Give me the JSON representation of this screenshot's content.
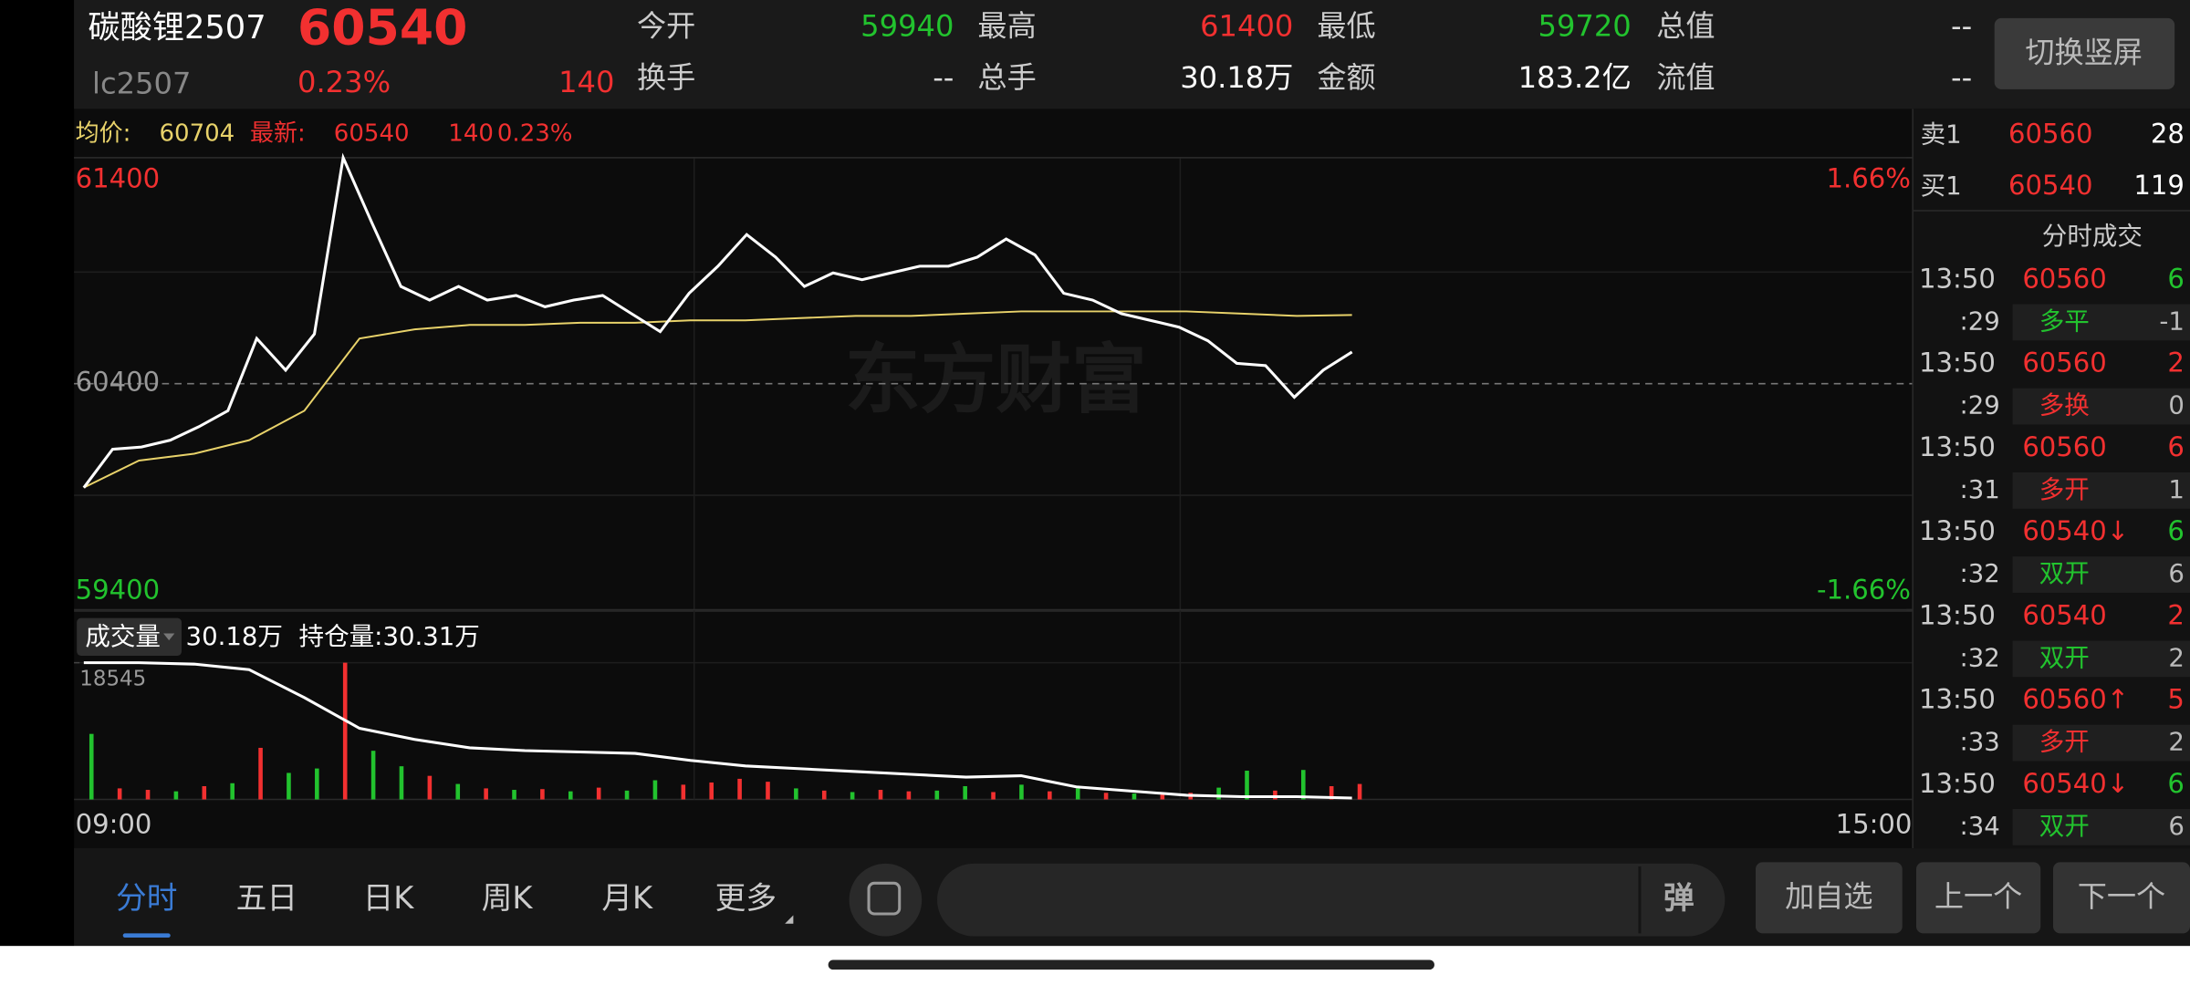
{
  "header": {
    "name": "碳酸锂2507",
    "price": "60540",
    "code": "lc2507",
    "change_pct": "0.23%",
    "change": "140",
    "stats": [
      {
        "label": "今开",
        "value": "59940",
        "color": "#22c32e"
      },
      {
        "label": "最高",
        "value": "61400",
        "color": "#f23030"
      },
      {
        "label": "最低",
        "value": "59720",
        "color": "#22c32e"
      },
      {
        "label": "总值",
        "value": "--",
        "color": "#dddddd"
      },
      {
        "label": "换手",
        "value": "--",
        "color": "#dddddd"
      },
      {
        "label": "总手",
        "value": "30.18万",
        "color": "#ffffff"
      },
      {
        "label": "金额",
        "value": "183.2亿",
        "color": "#ffffff"
      },
      {
        "label": "流值",
        "value": "--",
        "color": "#dddddd"
      }
    ],
    "button": "切换竖屏"
  },
  "info": {
    "avg_label": "均价:",
    "avg": "60704",
    "last_label": "最新:",
    "last": "60540",
    "change": "140",
    "change_pct": "0.23%"
  },
  "chart_data": [
    {
      "type": "line",
      "watermark": "东方财富",
      "ylim": [
        59400,
        61400
      ],
      "yticks": [
        59400,
        60400,
        61400
      ],
      "y2lim": [
        -1.66,
        1.66
      ],
      "y2ticks": [
        {
          "value": -1.66,
          "label": "-1.66%"
        },
        {
          "value": 1.66,
          "label": "1.66%"
        }
      ],
      "x_labels": [
        "09:00",
        "15:00"
      ],
      "series": [
        {
          "color": "#ffffff",
          "values": [
            59940,
            60110,
            60120,
            60150,
            60210,
            60280,
            60600,
            60460,
            60620,
            61400,
            61110,
            60830,
            60770,
            60830,
            60770,
            60790,
            60740,
            60770,
            60790,
            60710,
            60630,
            60800,
            60920,
            61060,
            60960,
            60830,
            60890,
            60860,
            60890,
            60920,
            60920,
            60960,
            61040,
            60970,
            60800,
            60770,
            60710,
            60680,
            60650,
            60590,
            60490,
            60480,
            60340,
            60460,
            60540
          ]
        },
        {
          "color": "#e8d26a",
          "values": [
            59940,
            60060,
            60090,
            60150,
            60280,
            60600,
            60640,
            60660,
            60660,
            60670,
            60670,
            60680,
            60680,
            60690,
            60700,
            60700,
            60710,
            60720,
            60720,
            60720,
            60720,
            60710,
            60700,
            60704
          ]
        }
      ]
    },
    {
      "type": "bar",
      "indicator": "成交量",
      "total": "30.18万",
      "oi_label": "持仓量:30.31万",
      "ylim": [
        0,
        18545
      ],
      "yticks": [
        18545
      ],
      "values": [
        8890,
        1500,
        1300,
        1100,
        1800,
        2200,
        7000,
        3600,
        4200,
        18545,
        6600,
        4500,
        3200,
        2100,
        1500,
        1300,
        1400,
        1100,
        1600,
        1200,
        2600,
        2000,
        2300,
        2800,
        2400,
        1500,
        1200,
        1000,
        1300,
        1100,
        1200,
        1800,
        1000,
        2000,
        1100,
        1500,
        900,
        800,
        700,
        900,
        1600,
        3900,
        1200,
        4000,
        1800,
        2100
      ],
      "colors": [
        "#22c32e",
        "#f23030",
        "#f23030",
        "#22c32e",
        "#f23030",
        "#22c32e",
        "#f23030",
        "#22c32e",
        "#22c32e",
        "#f23030",
        "#22c32e",
        "#22c32e",
        "#f23030",
        "#22c32e",
        "#f23030",
        "#22c32e",
        "#f23030",
        "#22c32e",
        "#f23030",
        "#22c32e",
        "#22c32e",
        "#f23030",
        "#f23030",
        "#f23030",
        "#f23030",
        "#22c32e",
        "#f23030",
        "#22c32e",
        "#f23030",
        "#f23030",
        "#22c32e",
        "#22c32e",
        "#f23030",
        "#22c32e",
        "#f23030",
        "#22c32e",
        "#f23030",
        "#22c32e",
        "#f23030",
        "#f23030",
        "#22c32e",
        "#22c32e",
        "#f23030",
        "#22c32e",
        "#f23030",
        "#f23030"
      ],
      "line": {
        "color": "#ffffff",
        "values": [
          18545,
          18545,
          18350,
          17600,
          13810,
          9650,
          8140,
          7000,
          6620,
          6430,
          6240,
          5300,
          4540,
          4160,
          3780,
          3410,
          3030,
          3220,
          1700,
          1140,
          570,
          380,
          380,
          190
        ]
      }
    }
  ],
  "order_book": [
    {
      "label": "卖1",
      "price": "60560",
      "qty": "28"
    },
    {
      "label": "买1",
      "price": "60540",
      "qty": "119"
    }
  ],
  "trades_title": "分时成交",
  "trades": [
    {
      "time": "13:50",
      "price": "60560",
      "price_color": "#f23030",
      "volume": "6",
      "volume_color": "#22c32e",
      "sub_time": ":29",
      "type": "多平",
      "type_color": "#22c32e",
      "change": "-1"
    },
    {
      "time": "13:50",
      "price": "60560",
      "price_color": "#f23030",
      "volume": "2",
      "volume_color": "#f23030",
      "sub_time": ":29",
      "type": "多换",
      "type_color": "#f23030",
      "change": "0"
    },
    {
      "time": "13:50",
      "price": "60560",
      "price_color": "#f23030",
      "volume": "6",
      "volume_color": "#f23030",
      "sub_time": ":31",
      "type": "多开",
      "type_color": "#f23030",
      "change": "1"
    },
    {
      "time": "13:50",
      "price": "60540↓",
      "price_color": "#f23030",
      "volume": "6",
      "volume_color": "#22c32e",
      "sub_time": ":32",
      "type": "双开",
      "type_color": "#22c32e",
      "change": "6"
    },
    {
      "time": "13:50",
      "price": "60540",
      "price_color": "#f23030",
      "volume": "2",
      "volume_color": "#f23030",
      "sub_time": ":32",
      "type": "双开",
      "type_color": "#22c32e",
      "change": "2"
    },
    {
      "time": "13:50",
      "price": "60560↑",
      "price_color": "#f23030",
      "volume": "5",
      "volume_color": "#f23030",
      "sub_time": ":33",
      "type": "多开",
      "type_color": "#f23030",
      "change": "2"
    },
    {
      "time": "13:50",
      "price": "60540↓",
      "price_color": "#f23030",
      "volume": "6",
      "volume_color": "#22c32e",
      "sub_time": ":34",
      "type": "双开",
      "type_color": "#22c32e",
      "change": "6"
    }
  ],
  "tabs": [
    "分时",
    "五日",
    "日K",
    "周K",
    "月K",
    "更多"
  ],
  "input_button": "弹",
  "buttons": [
    "加自选",
    "上一个",
    "下一个"
  ]
}
